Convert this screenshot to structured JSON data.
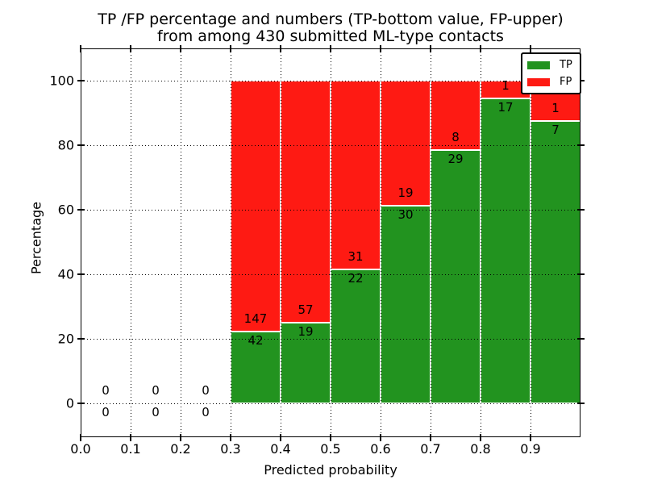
{
  "figure": {
    "title_line1": "TP /FP percentage and numbers (TP-bottom value, FP-upper)",
    "title_line2": "from among 430 submitted ML-type contacts"
  },
  "chart_data": {
    "type": "bar",
    "stacked": true,
    "title": "TP /FP percentage and numbers (TP-bottom value, FP-upper)\nfrom among 430 submitted ML-type contacts",
    "xlabel": "Predicted probability",
    "ylabel": "Percentage",
    "xlim": [
      0.0,
      1.0
    ],
    "ylim": [
      -10.5,
      110
    ],
    "grid": true,
    "total_contacts": 430,
    "xticks": {
      "values": [
        0.0,
        0.1,
        0.2,
        0.3,
        0.4,
        0.5,
        0.6,
        0.7,
        0.8,
        0.9
      ],
      "labels": [
        "0.0",
        "0.1",
        "0.2",
        "0.3",
        "0.4",
        "0.5",
        "0.6",
        "0.7",
        "0.8",
        "0.9"
      ]
    },
    "yticks": {
      "values": [
        0,
        20,
        40,
        60,
        80,
        100
      ],
      "labels": [
        "0",
        "20",
        "40",
        "60",
        "80",
        "100"
      ]
    },
    "colors": {
      "tp": "#22931f",
      "fp": "#fe1a13",
      "bar_edge": "#ffffff",
      "axis": "#000000"
    },
    "legend": {
      "position": "upper right",
      "items": [
        {
          "label": "TP",
          "color": "#22931f"
        },
        {
          "label": "FP",
          "color": "#fe1a13"
        }
      ]
    },
    "bins": [
      {
        "start": 0.0,
        "end": 0.1,
        "tp": 0,
        "fp": 0,
        "tp_pct": null
      },
      {
        "start": 0.1,
        "end": 0.2,
        "tp": 0,
        "fp": 0,
        "tp_pct": null
      },
      {
        "start": 0.2,
        "end": 0.3,
        "tp": 0,
        "fp": 0,
        "tp_pct": null
      },
      {
        "start": 0.3,
        "end": 0.4,
        "tp": 42,
        "fp": 147,
        "tp_pct": 22.2
      },
      {
        "start": 0.4,
        "end": 0.5,
        "tp": 19,
        "fp": 57,
        "tp_pct": 25.0
      },
      {
        "start": 0.5,
        "end": 0.6,
        "tp": 22,
        "fp": 31,
        "tp_pct": 41.5
      },
      {
        "start": 0.6,
        "end": 0.7,
        "tp": 30,
        "fp": 19,
        "tp_pct": 61.2
      },
      {
        "start": 0.7,
        "end": 0.8,
        "tp": 29,
        "fp": 8,
        "tp_pct": 78.4
      },
      {
        "start": 0.8,
        "end": 0.9,
        "tp": 17,
        "fp": 1,
        "tp_pct": 94.4
      },
      {
        "start": 0.9,
        "end": 1.0,
        "tp": 7,
        "fp": 1,
        "tp_pct": 87.5
      }
    ]
  }
}
